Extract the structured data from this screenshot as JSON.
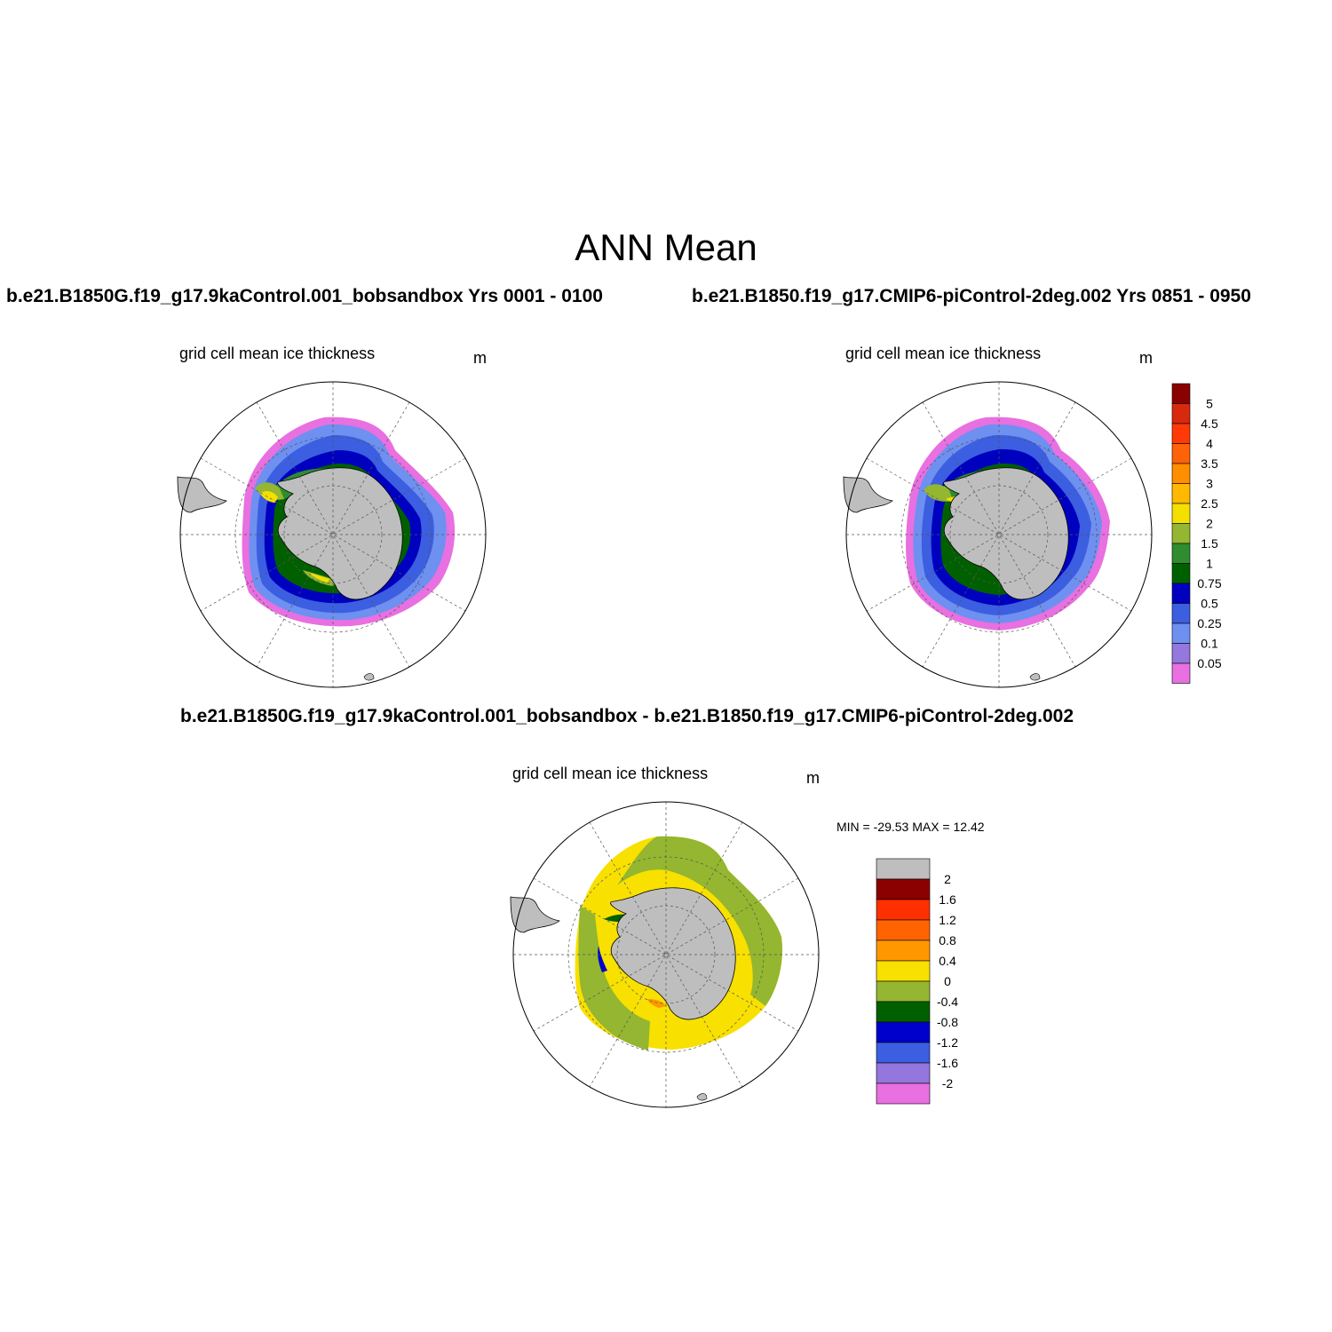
{
  "title": "ANN Mean",
  "panels": [
    {
      "id": "case1",
      "header": "b.e21.B1850G.f19_g17.9kaControl.001_bobsandbox  Yrs 0001 - 0100",
      "variable": "grid cell mean ice thickness",
      "units": "m"
    },
    {
      "id": "case2",
      "header": "b.e21.B1850.f19_g17.CMIP6-piControl-2deg.002  Yrs 0851 - 0950",
      "variable": "grid cell mean ice thickness",
      "units": "m"
    },
    {
      "id": "diff",
      "header": "b.e21.B1850G.f19_g17.9kaControl.001_bobsandbox - b.e21.B1850.f19_g17.CMIP6-piControl-2deg.002",
      "variable": "grid cell mean ice thickness",
      "units": "m",
      "stats": "MIN = -29.53 MAX =  12.42"
    }
  ],
  "legend_main": {
    "labels": [
      "5",
      "4.5",
      "4",
      "3.5",
      "3",
      "2.5",
      "2",
      "1.5",
      "1",
      "0.75",
      "0.5",
      "0.25",
      "0.1",
      "0.05"
    ],
    "colors": [
      "#8b0000",
      "#d8290f",
      "#ff3a06",
      "#ff6208",
      "#ff8e00",
      "#ffb900",
      "#f4e000",
      "#94b630",
      "#2f8c2f",
      "#006000",
      "#0000bf",
      "#3c5ee0",
      "#6e90f0",
      "#9478de",
      "#e870e0"
    ]
  },
  "legend_diff": {
    "labels": [
      "2",
      "1.6",
      "1.2",
      "0.8",
      "0.4",
      "0",
      "-0.4",
      "-0.8",
      "-1.2",
      "-1.6",
      "-2"
    ],
    "colors": [
      "#bebebe",
      "#8b0000",
      "#ff3000",
      "#ff6400",
      "#ff9800",
      "#f8e000",
      "#94b630",
      "#006000",
      "#0000cc",
      "#3c5ee0",
      "#9476de",
      "#e870e0"
    ]
  },
  "map_colors": {
    "land": "#bebebe",
    "ocean": "#ffffff",
    "grid": "#555555"
  }
}
